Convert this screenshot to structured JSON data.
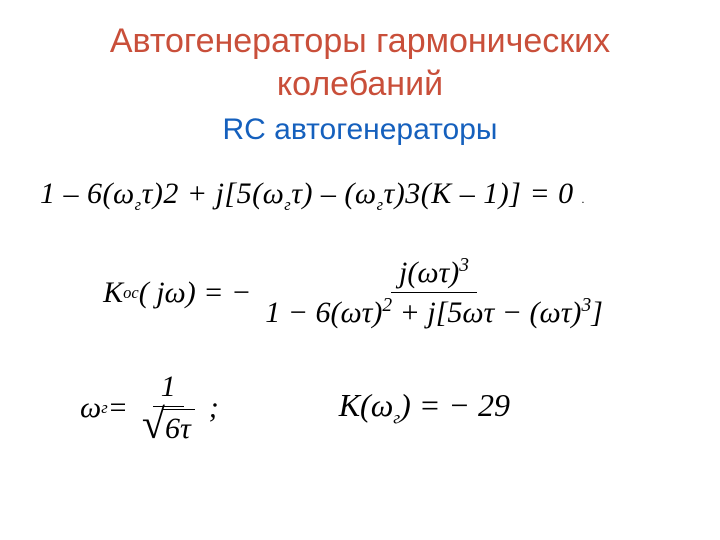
{
  "colors": {
    "title": "#c94f3a",
    "subtitle": "#1560bd",
    "text": "#000000",
    "background": "#ffffff"
  },
  "title": "Автогенераторы гармонических колебаний",
  "subtitle": "RC автогенераторы",
  "eq1": {
    "part1": "1 – 6(ω",
    "sub1": "г",
    "part2": "τ)2 + j[5(ω",
    "sub2": "г",
    "part3": "τ) – (ω",
    "sub3": "г",
    "part4": "τ)3(K – 1)] = 0",
    "dot": "."
  },
  "eq2": {
    "lhs_K": "K",
    "lhs_sub": "ос",
    "lhs_arg": "( jω) = −",
    "num_j": "j(ωτ)",
    "num_sup": "3",
    "den_p1": "1 − 6(ωτ)",
    "den_sup1": "2",
    "den_p2": " + j[5ωτ − (ωτ)",
    "den_sup2": "3",
    "den_p3": "]"
  },
  "eq3": {
    "lhs_omega": "ω",
    "lhs_sub": "г",
    "eq": " = ",
    "num": "1",
    "sqrt_body": "6τ",
    "semi": ";",
    "rhs_K": "K(ω",
    "rhs_sub": "г",
    "rhs_rest": ") = − 29"
  }
}
